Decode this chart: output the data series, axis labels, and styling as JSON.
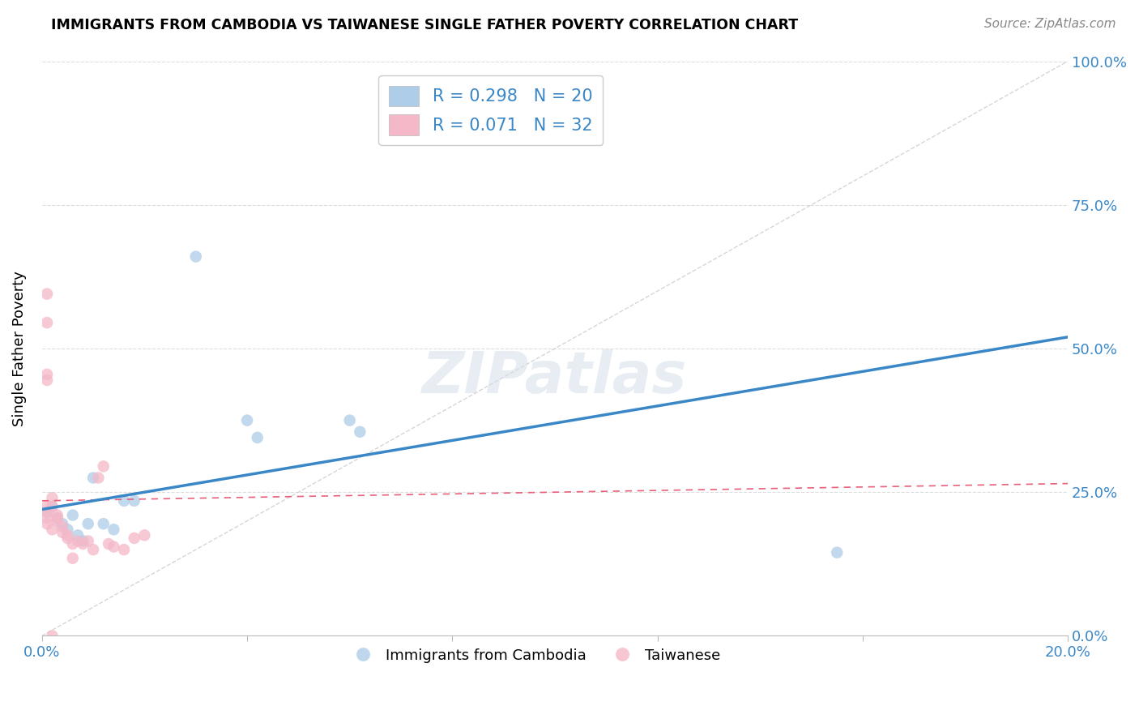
{
  "title": "IMMIGRANTS FROM CAMBODIA VS TAIWANESE SINGLE FATHER POVERTY CORRELATION CHART",
  "source": "Source: ZipAtlas.com",
  "ylabel": "Single Father Poverty",
  "ytick_labels": [
    "0.0%",
    "25.0%",
    "50.0%",
    "75.0%",
    "100.0%"
  ],
  "ytick_values": [
    0.0,
    0.25,
    0.5,
    0.75,
    1.0
  ],
  "xlim": [
    0.0,
    0.2
  ],
  "ylim": [
    0.0,
    1.0
  ],
  "blue_color": "#aecde8",
  "pink_color": "#f4b8c8",
  "blue_line_color": "#3a87c8",
  "pink_line_color": "#e8607a",
  "diagonal_color": "#cccccc",
  "blue_line_x0": 0.0,
  "blue_line_y0": 0.22,
  "blue_line_x1": 0.2,
  "blue_line_y1": 0.52,
  "pink_line_x0": 0.0,
  "pink_line_y0": 0.235,
  "pink_line_x1": 0.2,
  "pink_line_y1": 0.265,
  "cambodia_x": [
    0.001,
    0.002,
    0.003,
    0.004,
    0.005,
    0.006,
    0.007,
    0.008,
    0.009,
    0.01,
    0.012,
    0.014,
    0.016,
    0.018,
    0.04,
    0.042,
    0.06,
    0.062,
    0.155,
    0.03
  ],
  "cambodia_y": [
    0.215,
    0.225,
    0.205,
    0.195,
    0.185,
    0.21,
    0.175,
    0.165,
    0.195,
    0.275,
    0.195,
    0.185,
    0.235,
    0.235,
    0.375,
    0.345,
    0.375,
    0.355,
    0.145,
    0.66
  ],
  "taiwanese_x": [
    0.001,
    0.001,
    0.001,
    0.001,
    0.002,
    0.002,
    0.002,
    0.003,
    0.003,
    0.003,
    0.004,
    0.004,
    0.005,
    0.005,
    0.006,
    0.006,
    0.007,
    0.008,
    0.009,
    0.01,
    0.011,
    0.012,
    0.013,
    0.014,
    0.016,
    0.018,
    0.02,
    0.001,
    0.001,
    0.001,
    0.002,
    0.001
  ],
  "taiwanese_y": [
    0.225,
    0.215,
    0.205,
    0.195,
    0.24,
    0.225,
    0.185,
    0.205,
    0.21,
    0.2,
    0.19,
    0.18,
    0.175,
    0.17,
    0.135,
    0.16,
    0.165,
    0.16,
    0.165,
    0.15,
    0.275,
    0.295,
    0.16,
    0.155,
    0.15,
    0.17,
    0.175,
    0.545,
    0.455,
    0.445,
    0.0,
    0.595
  ],
  "legend_line1": "R = 0.298   N = 20",
  "legend_line2": "R = 0.071   N = 32",
  "legend_r1_color": "#3a87c8",
  "legend_n1_color": "#3a87c8",
  "legend_r2_color": "#3a87c8",
  "legend_n2_color": "#3a87c8"
}
